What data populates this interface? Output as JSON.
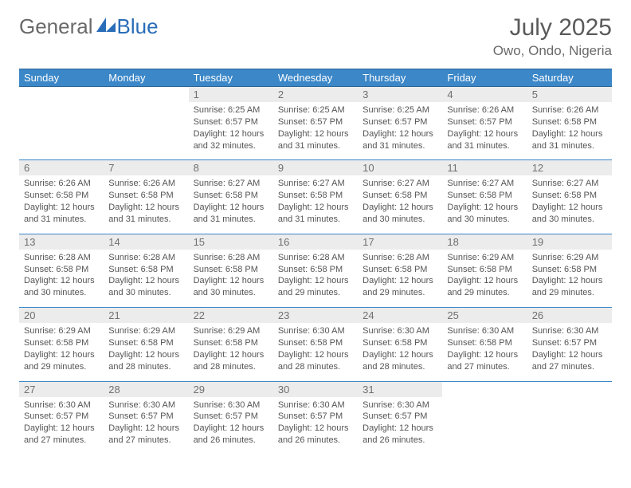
{
  "brand": {
    "part1": "General",
    "part2": "Blue"
  },
  "title": "July 2025",
  "location": "Owo, Ondo, Nigeria",
  "colors": {
    "header_bg": "#3b87c8",
    "header_border": "#2a6496",
    "daynum_bg": "#ececec",
    "text": "#555555",
    "logo_gray": "#6a6a6a",
    "logo_blue": "#2a6db8"
  },
  "weekdays": [
    "Sunday",
    "Monday",
    "Tuesday",
    "Wednesday",
    "Thursday",
    "Friday",
    "Saturday"
  ],
  "weeks": [
    [
      null,
      null,
      {
        "n": "1",
        "sr": "6:25 AM",
        "ss": "6:57 PM",
        "dl": "12 hours and 32 minutes."
      },
      {
        "n": "2",
        "sr": "6:25 AM",
        "ss": "6:57 PM",
        "dl": "12 hours and 31 minutes."
      },
      {
        "n": "3",
        "sr": "6:25 AM",
        "ss": "6:57 PM",
        "dl": "12 hours and 31 minutes."
      },
      {
        "n": "4",
        "sr": "6:26 AM",
        "ss": "6:57 PM",
        "dl": "12 hours and 31 minutes."
      },
      {
        "n": "5",
        "sr": "6:26 AM",
        "ss": "6:58 PM",
        "dl": "12 hours and 31 minutes."
      }
    ],
    [
      {
        "n": "6",
        "sr": "6:26 AM",
        "ss": "6:58 PM",
        "dl": "12 hours and 31 minutes."
      },
      {
        "n": "7",
        "sr": "6:26 AM",
        "ss": "6:58 PM",
        "dl": "12 hours and 31 minutes."
      },
      {
        "n": "8",
        "sr": "6:27 AM",
        "ss": "6:58 PM",
        "dl": "12 hours and 31 minutes."
      },
      {
        "n": "9",
        "sr": "6:27 AM",
        "ss": "6:58 PM",
        "dl": "12 hours and 31 minutes."
      },
      {
        "n": "10",
        "sr": "6:27 AM",
        "ss": "6:58 PM",
        "dl": "12 hours and 30 minutes."
      },
      {
        "n": "11",
        "sr": "6:27 AM",
        "ss": "6:58 PM",
        "dl": "12 hours and 30 minutes."
      },
      {
        "n": "12",
        "sr": "6:27 AM",
        "ss": "6:58 PM",
        "dl": "12 hours and 30 minutes."
      }
    ],
    [
      {
        "n": "13",
        "sr": "6:28 AM",
        "ss": "6:58 PM",
        "dl": "12 hours and 30 minutes."
      },
      {
        "n": "14",
        "sr": "6:28 AM",
        "ss": "6:58 PM",
        "dl": "12 hours and 30 minutes."
      },
      {
        "n": "15",
        "sr": "6:28 AM",
        "ss": "6:58 PM",
        "dl": "12 hours and 30 minutes."
      },
      {
        "n": "16",
        "sr": "6:28 AM",
        "ss": "6:58 PM",
        "dl": "12 hours and 29 minutes."
      },
      {
        "n": "17",
        "sr": "6:28 AM",
        "ss": "6:58 PM",
        "dl": "12 hours and 29 minutes."
      },
      {
        "n": "18",
        "sr": "6:29 AM",
        "ss": "6:58 PM",
        "dl": "12 hours and 29 minutes."
      },
      {
        "n": "19",
        "sr": "6:29 AM",
        "ss": "6:58 PM",
        "dl": "12 hours and 29 minutes."
      }
    ],
    [
      {
        "n": "20",
        "sr": "6:29 AM",
        "ss": "6:58 PM",
        "dl": "12 hours and 29 minutes."
      },
      {
        "n": "21",
        "sr": "6:29 AM",
        "ss": "6:58 PM",
        "dl": "12 hours and 28 minutes."
      },
      {
        "n": "22",
        "sr": "6:29 AM",
        "ss": "6:58 PM",
        "dl": "12 hours and 28 minutes."
      },
      {
        "n": "23",
        "sr": "6:30 AM",
        "ss": "6:58 PM",
        "dl": "12 hours and 28 minutes."
      },
      {
        "n": "24",
        "sr": "6:30 AM",
        "ss": "6:58 PM",
        "dl": "12 hours and 28 minutes."
      },
      {
        "n": "25",
        "sr": "6:30 AM",
        "ss": "6:58 PM",
        "dl": "12 hours and 27 minutes."
      },
      {
        "n": "26",
        "sr": "6:30 AM",
        "ss": "6:57 PM",
        "dl": "12 hours and 27 minutes."
      }
    ],
    [
      {
        "n": "27",
        "sr": "6:30 AM",
        "ss": "6:57 PM",
        "dl": "12 hours and 27 minutes."
      },
      {
        "n": "28",
        "sr": "6:30 AM",
        "ss": "6:57 PM",
        "dl": "12 hours and 27 minutes."
      },
      {
        "n": "29",
        "sr": "6:30 AM",
        "ss": "6:57 PM",
        "dl": "12 hours and 26 minutes."
      },
      {
        "n": "30",
        "sr": "6:30 AM",
        "ss": "6:57 PM",
        "dl": "12 hours and 26 minutes."
      },
      {
        "n": "31",
        "sr": "6:30 AM",
        "ss": "6:57 PM",
        "dl": "12 hours and 26 minutes."
      },
      null,
      null
    ]
  ],
  "labels": {
    "sunrise": "Sunrise:",
    "sunset": "Sunset:",
    "daylight": "Daylight:"
  }
}
